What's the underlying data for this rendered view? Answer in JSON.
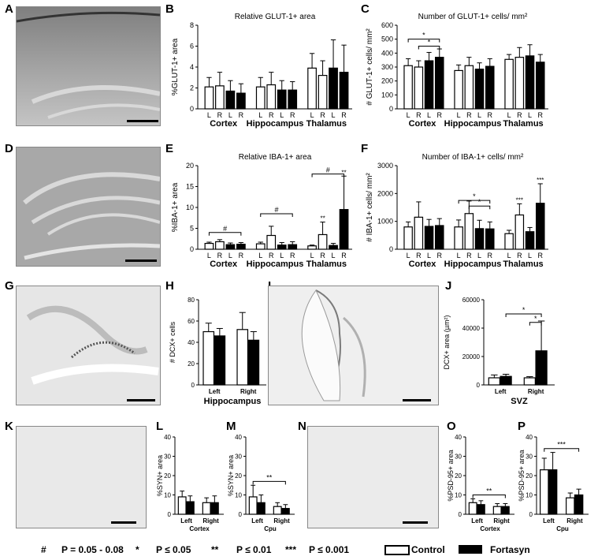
{
  "panel_letters": [
    "A",
    "B",
    "C",
    "D",
    "E",
    "F",
    "G",
    "H",
    "I",
    "J",
    "K",
    "L",
    "M",
    "N",
    "O",
    "P"
  ],
  "legend": {
    "items": [
      {
        "symbol": "#",
        "text": "P = 0.05 - 0.08"
      },
      {
        "symbol": "*",
        "text": "P ≤ 0.05"
      },
      {
        "symbol": "**",
        "text": "P ≤ 0.01"
      },
      {
        "symbol": "***",
        "text": "P ≤ 0.001"
      }
    ],
    "control_label": "Control",
    "fortasyn_label": "Fortasyn"
  },
  "colors": {
    "control": "#ffffff",
    "fortasyn": "#000000"
  },
  "chart_data": [
    {
      "id": "B",
      "type": "bar",
      "title": "Relative GLUT-1+ area",
      "ylabel": "%GLUT-1+ area",
      "ylim": [
        0,
        8
      ],
      "yticks": [
        0,
        2,
        4,
        6,
        8
      ],
      "groups": [
        "Cortex",
        "Hippocampus",
        "Thalamus"
      ],
      "bars": [
        {
          "x": "L",
          "fill": "control",
          "value": 2.1,
          "err": 0.9
        },
        {
          "x": "R",
          "fill": "control",
          "value": 2.2,
          "err": 1.3
        },
        {
          "x": "L",
          "fill": "fortasyn",
          "value": 1.7,
          "err": 1.0
        },
        {
          "x": "R",
          "fill": "fortasyn",
          "value": 1.5,
          "err": 0.9
        },
        {
          "x": "L",
          "fill": "control",
          "value": 2.1,
          "err": 0.9
        },
        {
          "x": "R",
          "fill": "control",
          "value": 2.3,
          "err": 1.2
        },
        {
          "x": "L",
          "fill": "fortasyn",
          "value": 1.8,
          "err": 0.9
        },
        {
          "x": "R",
          "fill": "fortasyn",
          "value": 1.8,
          "err": 0.8
        },
        {
          "x": "L",
          "fill": "control",
          "value": 3.9,
          "err": 1.4
        },
        {
          "x": "R",
          "fill": "control",
          "value": 3.2,
          "err": 1.4
        },
        {
          "x": "L",
          "fill": "fortasyn",
          "value": 3.9,
          "err": 2.7
        },
        {
          "x": "R",
          "fill": "fortasyn",
          "value": 3.5,
          "err": 2.6
        }
      ],
      "sig": []
    },
    {
      "id": "C",
      "type": "bar",
      "title": "Number of GLUT-1+ cells/ mm²",
      "ylabel": "# GLUT-1+ cells/ mm²",
      "ylim": [
        0,
        600
      ],
      "yticks": [
        0,
        100,
        200,
        300,
        400,
        500,
        600
      ],
      "groups": [
        "Cortex",
        "Hippocampus",
        "Thalamus"
      ],
      "bars": [
        {
          "x": "L",
          "fill": "control",
          "value": 310,
          "err": 50
        },
        {
          "x": "R",
          "fill": "control",
          "value": 300,
          "err": 45
        },
        {
          "x": "L",
          "fill": "fortasyn",
          "value": 345,
          "err": 60
        },
        {
          "x": "R",
          "fill": "fortasyn",
          "value": 370,
          "err": 60
        },
        {
          "x": "L",
          "fill": "control",
          "value": 275,
          "err": 40
        },
        {
          "x": "R",
          "fill": "control",
          "value": 310,
          "err": 60
        },
        {
          "x": "L",
          "fill": "fortasyn",
          "value": 285,
          "err": 45
        },
        {
          "x": "R",
          "fill": "fortasyn",
          "value": 305,
          "err": 55
        },
        {
          "x": "L",
          "fill": "control",
          "value": 355,
          "err": 35
        },
        {
          "x": "R",
          "fill": "control",
          "value": 370,
          "err": 70
        },
        {
          "x": "L",
          "fill": "fortasyn",
          "value": 380,
          "err": 80
        },
        {
          "x": "R",
          "fill": "fortasyn",
          "value": 335,
          "err": 55
        }
      ],
      "sig": [
        {
          "from": 0,
          "to": 3,
          "y": 500,
          "label": "*"
        },
        {
          "from": 1,
          "to": 3,
          "y": 450,
          "label": "*"
        }
      ]
    },
    {
      "id": "E",
      "type": "bar",
      "title": "Relative IBA-1+ area",
      "ylabel": "%IBA-1+ area",
      "ylim": [
        0,
        20
      ],
      "yticks": [
        0,
        5,
        10,
        15,
        20
      ],
      "groups": [
        "Cortex",
        "Hippocampus",
        "Thalamus"
      ],
      "bars": [
        {
          "x": "L",
          "fill": "control",
          "value": 1.4,
          "err": 0.3
        },
        {
          "x": "R",
          "fill": "control",
          "value": 1.8,
          "err": 0.5
        },
        {
          "x": "L",
          "fill": "fortasyn",
          "value": 1.1,
          "err": 0.4
        },
        {
          "x": "R",
          "fill": "fortasyn",
          "value": 1.2,
          "err": 0.4
        },
        {
          "x": "L",
          "fill": "control",
          "value": 1.3,
          "err": 0.4
        },
        {
          "x": "R",
          "fill": "control",
          "value": 3.3,
          "err": 2.2
        },
        {
          "x": "L",
          "fill": "fortasyn",
          "value": 1.0,
          "err": 0.6
        },
        {
          "x": "R",
          "fill": "fortasyn",
          "value": 1.1,
          "err": 0.7
        },
        {
          "x": "L",
          "fill": "control",
          "value": 0.8,
          "err": 0.2
        },
        {
          "x": "R",
          "fill": "control",
          "value": 3.5,
          "err": 3.0
        },
        {
          "x": "L",
          "fill": "fortasyn",
          "value": 0.9,
          "err": 0.5
        },
        {
          "x": "R",
          "fill": "fortasyn",
          "value": 9.5,
          "err": 8.0
        }
      ],
      "bar_labels": [
        {
          "bar": 9,
          "label": "**"
        },
        {
          "bar": 11,
          "label": "**"
        }
      ],
      "sig": [
        {
          "from": 0,
          "to": 3,
          "y": 4.0,
          "label": "#"
        },
        {
          "from": 4,
          "to": 7,
          "y": 8.5,
          "label": "#"
        },
        {
          "from": 8,
          "to": 11,
          "y": 18.0,
          "label": "#"
        }
      ]
    },
    {
      "id": "F",
      "type": "bar",
      "title": "Number of IBA-1+ cells/ mm²",
      "ylabel": "# IBA-1+ cells/ mm²",
      "ylim": [
        0,
        3000
      ],
      "yticks": [
        0,
        1000,
        2000,
        3000
      ],
      "groups": [
        "Cortex",
        "Hippocampus",
        "Thalamus"
      ],
      "bars": [
        {
          "x": "L",
          "fill": "control",
          "value": 800,
          "err": 180
        },
        {
          "x": "R",
          "fill": "control",
          "value": 1150,
          "err": 550
        },
        {
          "x": "L",
          "fill": "fortasyn",
          "value": 820,
          "err": 250
        },
        {
          "x": "R",
          "fill": "fortasyn",
          "value": 850,
          "err": 250
        },
        {
          "x": "L",
          "fill": "control",
          "value": 800,
          "err": 250
        },
        {
          "x": "R",
          "fill": "control",
          "value": 1280,
          "err": 450
        },
        {
          "x": "L",
          "fill": "fortasyn",
          "value": 740,
          "err": 300
        },
        {
          "x": "R",
          "fill": "fortasyn",
          "value": 730,
          "err": 250
        },
        {
          "x": "L",
          "fill": "control",
          "value": 560,
          "err": 120
        },
        {
          "x": "R",
          "fill": "control",
          "value": 1230,
          "err": 400
        },
        {
          "x": "L",
          "fill": "fortasyn",
          "value": 630,
          "err": 150
        },
        {
          "x": "R",
          "fill": "fortasyn",
          "value": 1650,
          "err": 700
        }
      ],
      "bar_labels": [
        {
          "bar": 9,
          "label": "***"
        },
        {
          "bar": 11,
          "label": "***"
        }
      ],
      "sig": [
        {
          "from": 4,
          "to": 7,
          "y": 1750,
          "label": "*"
        },
        {
          "from": 5,
          "to": 7,
          "y": 1550,
          "label": "*"
        }
      ]
    },
    {
      "id": "H",
      "type": "bar",
      "title": "",
      "ylabel": "# DCX+ cells",
      "ylim": [
        0,
        80
      ],
      "yticks": [
        0,
        20,
        40,
        60,
        80
      ],
      "groups": [
        "Hippocampus"
      ],
      "xgroups": [
        "Left",
        "Right"
      ],
      "bars": [
        {
          "fill": "control",
          "value": 50,
          "err": 8
        },
        {
          "fill": "fortasyn",
          "value": 46,
          "err": 7
        },
        {
          "fill": "control",
          "value": 52,
          "err": 16
        },
        {
          "fill": "fortasyn",
          "value": 42,
          "err": 8
        }
      ],
      "sig": []
    },
    {
      "id": "J",
      "type": "bar",
      "title": "",
      "ylabel": "DCX+ area (µm²)",
      "ylim": [
        0,
        60000
      ],
      "yticks": [
        0,
        20000,
        40000,
        60000
      ],
      "groups": [
        "SVZ"
      ],
      "xgroups": [
        "Left",
        "Right"
      ],
      "bars": [
        {
          "fill": "control",
          "value": 5000,
          "err": 2000
        },
        {
          "fill": "fortasyn",
          "value": 6000,
          "err": 1500
        },
        {
          "fill": "control",
          "value": 5000,
          "err": 800
        },
        {
          "fill": "fortasyn",
          "value": 24000,
          "err": 21000
        }
      ],
      "sig": [
        {
          "from": 1,
          "to": 3,
          "y": 50000,
          "label": "*"
        },
        {
          "from": 2,
          "to": 3,
          "y": 44000,
          "label": "*"
        }
      ]
    },
    {
      "id": "L",
      "type": "bar",
      "title": "",
      "ylabel": "%SYN+ area",
      "ylim": [
        0,
        40
      ],
      "yticks": [
        0,
        10,
        20,
        30,
        40
      ],
      "groups": [
        "Cortex"
      ],
      "xgroups": [
        "Left",
        "Right"
      ],
      "bars": [
        {
          "fill": "control",
          "value": 9,
          "err": 3
        },
        {
          "fill": "fortasyn",
          "value": 6.5,
          "err": 3
        },
        {
          "fill": "control",
          "value": 6,
          "err": 2.5
        },
        {
          "fill": "fortasyn",
          "value": 6,
          "err": 3.5
        }
      ],
      "sig": []
    },
    {
      "id": "M",
      "type": "bar",
      "title": "",
      "ylabel": "%SYN+ area",
      "ylim": [
        0,
        40
      ],
      "yticks": [
        0,
        10,
        20,
        30,
        40
      ],
      "groups": [
        "Cpu"
      ],
      "xgroups": [
        "Left",
        "Right"
      ],
      "bars": [
        {
          "fill": "control",
          "value": 9,
          "err": 6
        },
        {
          "fill": "fortasyn",
          "value": 6,
          "err": 4
        },
        {
          "fill": "control",
          "value": 4,
          "err": 2
        },
        {
          "fill": "fortasyn",
          "value": 3,
          "err": 2
        }
      ],
      "sig": [
        {
          "from": 0,
          "to": 3,
          "y": 17,
          "label": "**"
        }
      ]
    },
    {
      "id": "O",
      "type": "bar",
      "title": "",
      "ylabel": "%PSD-95+ area",
      "ylim": [
        0,
        40
      ],
      "yticks": [
        0,
        10,
        20,
        30,
        40
      ],
      "groups": [
        "Cortex"
      ],
      "xgroups": [
        "Left",
        "Right"
      ],
      "bars": [
        {
          "fill": "control",
          "value": 6,
          "err": 2
        },
        {
          "fill": "fortasyn",
          "value": 5,
          "err": 2
        },
        {
          "fill": "control",
          "value": 4,
          "err": 1.5
        },
        {
          "fill": "fortasyn",
          "value": 4,
          "err": 1.5
        }
      ],
      "sig": [
        {
          "from": 0,
          "to": 3,
          "y": 10,
          "label": "**"
        }
      ]
    },
    {
      "id": "P",
      "type": "bar",
      "title": "",
      "ylabel": "%PSD-95+ area",
      "ylim": [
        0,
        40
      ],
      "yticks": [
        0,
        10,
        20,
        30,
        40
      ],
      "groups": [
        "Cpu"
      ],
      "xgroups": [
        "Left",
        "Right"
      ],
      "bars": [
        {
          "fill": "control",
          "value": 23,
          "err": 6
        },
        {
          "fill": "fortasyn",
          "value": 23,
          "err": 9
        },
        {
          "fill": "control",
          "value": 8.5,
          "err": 2.5
        },
        {
          "fill": "fortasyn",
          "value": 10,
          "err": 3
        }
      ],
      "sig": [
        {
          "from": 0,
          "to": 3,
          "y": 34,
          "label": "***"
        }
      ]
    }
  ]
}
